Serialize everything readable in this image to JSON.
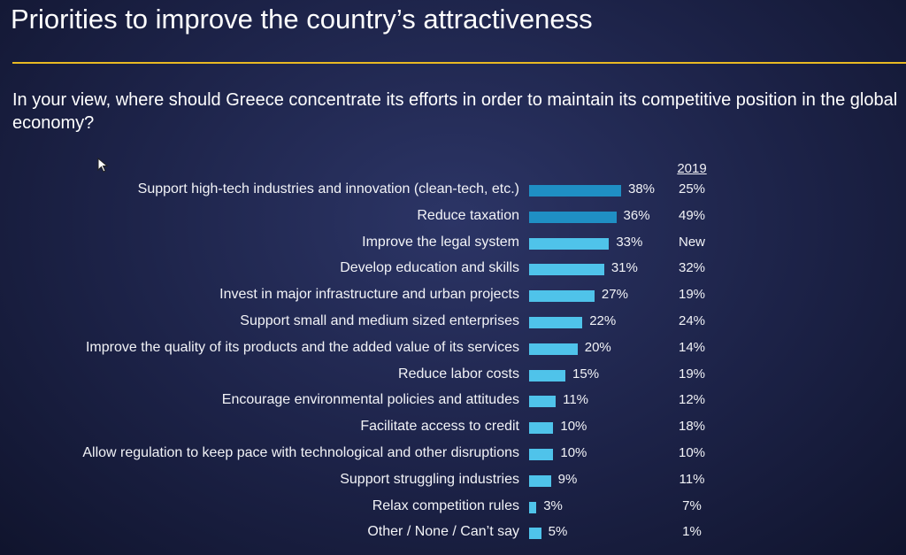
{
  "title": "Priorities to improve the country’s attractiveness",
  "question": "In your view, where should Greece concentrate its efforts in order to maintain its competitive position in the global economy?",
  "comparison_header": "2019",
  "colors": {
    "accent_rule": "#e8b923",
    "bar_dark": "#1f8fc4",
    "bar_light": "#4fc3ea"
  },
  "chart_data": {
    "type": "bar",
    "orientation": "horizontal",
    "categories": [
      "Support high-tech industries and innovation (clean-tech, etc.)",
      "Reduce taxation",
      "Improve the legal system",
      "Develop education and skills",
      "Invest in major infrastructure and urban projects",
      "Support small and medium sized enterprises",
      "Improve the quality of its products and the added value of its services",
      "Reduce labor costs",
      "Encourage environmental policies and attitudes",
      "Facilitate access to credit",
      "Allow regulation to keep pace with technological and other disruptions",
      "Support struggling industries",
      "Relax competition rules",
      "Other / None / Can’t say"
    ],
    "values": [
      38,
      36,
      33,
      31,
      27,
      22,
      20,
      15,
      11,
      10,
      10,
      9,
      3,
      5
    ],
    "value_labels": [
      "38%",
      "36%",
      "33%",
      "31%",
      "27%",
      "22%",
      "20%",
      "15%",
      "11%",
      "10%",
      "10%",
      "9%",
      "3%",
      "5%"
    ],
    "comparison_labels": [
      "25%",
      "49%",
      "New",
      "32%",
      "19%",
      "24%",
      "14%",
      "19%",
      "12%",
      "18%",
      "10%",
      "11%",
      "7%",
      "1%"
    ],
    "xlim": [
      0,
      40
    ]
  }
}
